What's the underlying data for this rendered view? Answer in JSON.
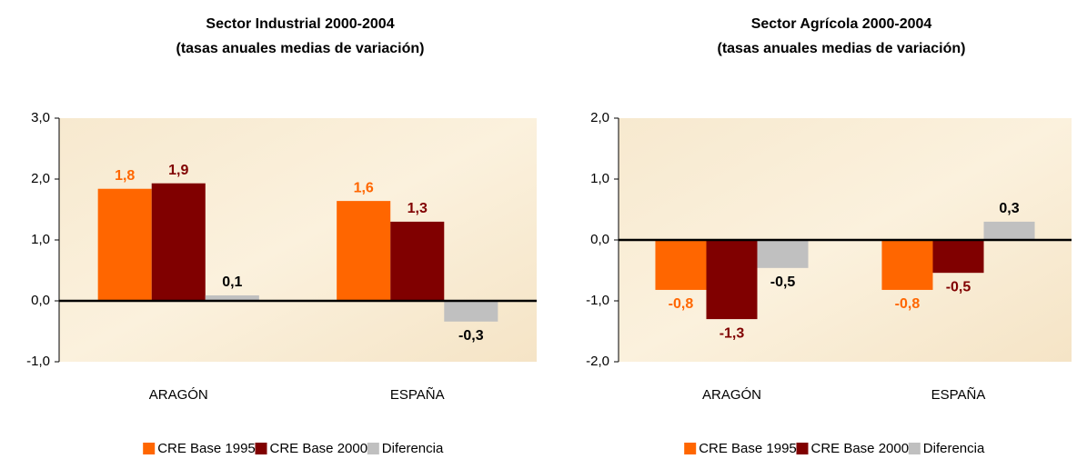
{
  "chart_data": [
    {
      "type": "bar",
      "title": "Sector Industrial 2000-2004",
      "subtitle": "(tasas anuales medias de variación)",
      "categories": [
        "ARAGÓN",
        "ESPAÑA"
      ],
      "series": [
        {
          "name": "CRE Base 1995",
          "color": "#ff6600",
          "label_color": "#ff6600",
          "values": [
            1.84,
            1.64
          ],
          "value_labels": [
            "1,8",
            "1,6"
          ]
        },
        {
          "name": "CRE Base 2000",
          "color": "#800000",
          "label_color": "#800000",
          "values": [
            1.93,
            1.3
          ],
          "value_labels": [
            "1,9",
            "1,3"
          ]
        },
        {
          "name": "Diferencia",
          "color": "#c0c0c0",
          "label_color": "#000000",
          "values": [
            0.09,
            -0.34
          ],
          "value_labels": [
            "0,1",
            "-0,3"
          ]
        }
      ],
      "ylim": [
        -1,
        3
      ],
      "yticks": [
        {
          "value": -1,
          "label": "-1,0"
        },
        {
          "value": 0,
          "label": "0,0"
        },
        {
          "value": 1,
          "label": "1,0"
        },
        {
          "value": 2,
          "label": "2,0"
        },
        {
          "value": 3,
          "label": "3,0"
        }
      ],
      "legend": "bottom"
    },
    {
      "type": "bar",
      "title": "Sector Agrícola 2000-2004",
      "subtitle": "(tasas anuales medias de variación)",
      "categories": [
        "ARAGÓN",
        "ESPAÑA"
      ],
      "series": [
        {
          "name": "CRE Base 1995",
          "color": "#ff6600",
          "label_color": "#ff6600",
          "values": [
            -0.82,
            -0.82
          ],
          "value_labels": [
            "-0,8",
            "-0,8"
          ]
        },
        {
          "name": "CRE Base 2000",
          "color": "#800000",
          "label_color": "#800000",
          "values": [
            -1.3,
            -0.54
          ],
          "value_labels": [
            "-1,3",
            "-0,5"
          ]
        },
        {
          "name": "Diferencia",
          "color": "#c0c0c0",
          "label_color": "#000000",
          "values": [
            -0.46,
            0.3
          ],
          "value_labels": [
            "-0,5",
            "0,3"
          ]
        }
      ],
      "ylim": [
        -2,
        2
      ],
      "yticks": [
        {
          "value": -2,
          "label": "-2,0"
        },
        {
          "value": -1,
          "label": "-1,0"
        },
        {
          "value": 0,
          "label": "0,0"
        },
        {
          "value": 1,
          "label": "1,0"
        },
        {
          "value": 2,
          "label": "2,0"
        }
      ],
      "legend": "bottom"
    }
  ]
}
